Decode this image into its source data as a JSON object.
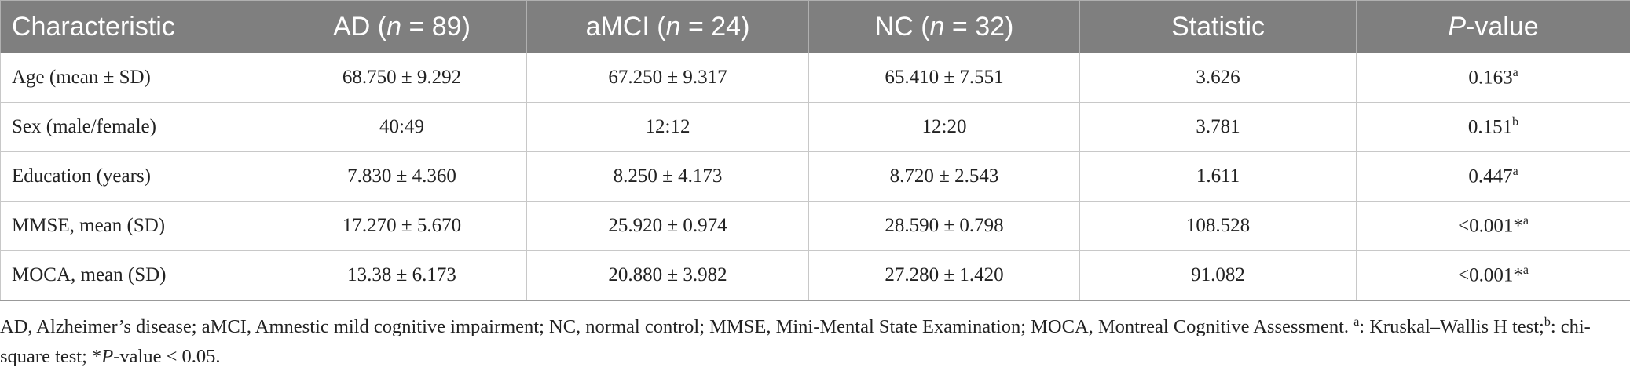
{
  "table": {
    "header": [
      {
        "text": "Characteristic"
      },
      {
        "text": "AD (",
        "italic": "n",
        "post": " = 89)"
      },
      {
        "text": "aMCI (",
        "italic": "n",
        "post": " = 24)"
      },
      {
        "text": "NC (",
        "italic": "n",
        "post": " = 32)"
      },
      {
        "text": "Statistic"
      },
      {
        "italic": "P",
        "post": "-value"
      }
    ],
    "rows": [
      [
        {
          "text": "Age (mean ± SD)"
        },
        {
          "text": "68.750 ± 9.292"
        },
        {
          "text": "67.250 ± 9.317"
        },
        {
          "text": "65.410 ± 7.551"
        },
        {
          "text": "3.626"
        },
        {
          "text": "0.163",
          "sup": "a"
        }
      ],
      [
        {
          "text": "Sex (male/female)"
        },
        {
          "text": "40:49"
        },
        {
          "text": "12:12"
        },
        {
          "text": "12:20"
        },
        {
          "text": "3.781"
        },
        {
          "text": "0.151",
          "sup": "b"
        }
      ],
      [
        {
          "text": "Education (years)"
        },
        {
          "text": "7.830 ± 4.360"
        },
        {
          "text": "8.250 ± 4.173"
        },
        {
          "text": "8.720 ± 2.543"
        },
        {
          "text": "1.611"
        },
        {
          "text": "0.447",
          "sup": "a"
        }
      ],
      [
        {
          "text": "MMSE, mean (SD)"
        },
        {
          "text": "17.270 ± 5.670"
        },
        {
          "text": "25.920 ± 0.974"
        },
        {
          "text": "28.590 ± 0.798"
        },
        {
          "text": "108.528"
        },
        {
          "text": "<0.001*",
          "sup": "a"
        }
      ],
      [
        {
          "text": "MOCA, mean (SD)"
        },
        {
          "text": "13.38 ± 6.173"
        },
        {
          "text": "20.880 ± 3.982"
        },
        {
          "text": "27.280 ± 1.420"
        },
        {
          "text": "91.082"
        },
        {
          "text": "<0.001*",
          "sup": "a"
        }
      ]
    ]
  },
  "footnote": [
    {
      "text": "AD, Alzheimer’s disease; aMCI, Amnestic mild cognitive impairment; NC, normal control; MMSE, Mini-Mental State Examination; MOCA, Montreal Cognitive Assessment. "
    },
    {
      "sup": "a"
    },
    {
      "text": ": Kruskal–Wallis H test;"
    },
    {
      "sup": "b"
    },
    {
      "text": ": chi-square test; *"
    },
    {
      "italic": "P"
    },
    {
      "text": "-value < 0.05."
    }
  ]
}
